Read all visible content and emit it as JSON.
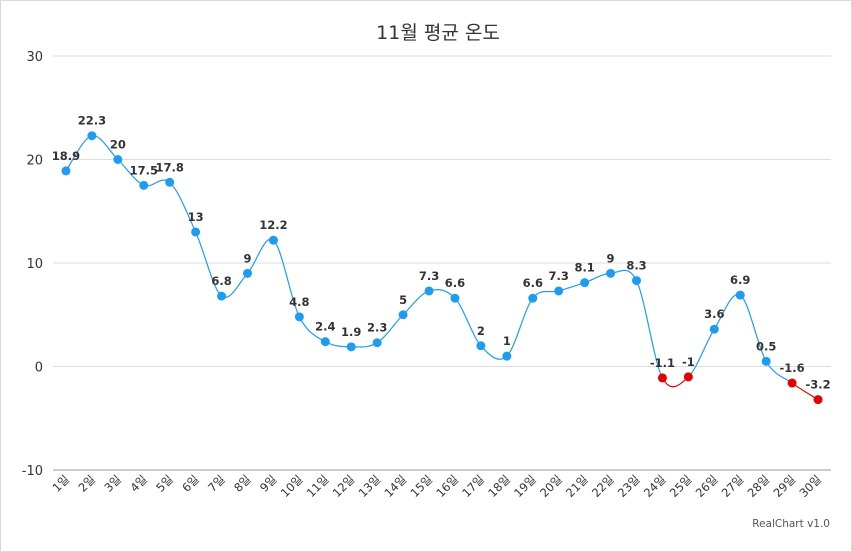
{
  "chart_data": {
    "type": "line",
    "title": "11월 평균 온도",
    "categories": [
      "1일",
      "2일",
      "3일",
      "4일",
      "5일",
      "6일",
      "7일",
      "8일",
      "9일",
      "10일",
      "11일",
      "12일",
      "13일",
      "14일",
      "15일",
      "16일",
      "17일",
      "18일",
      "19일",
      "20일",
      "21일",
      "22일",
      "23일",
      "24일",
      "25일",
      "26일",
      "27일",
      "28일",
      "29일",
      "30일"
    ],
    "values": [
      18.9,
      22.3,
      20,
      17.5,
      17.8,
      13,
      6.8,
      9,
      12.2,
      4.8,
      2.4,
      1.9,
      2.3,
      5,
      7.3,
      6.6,
      2,
      1,
      6.6,
      7.3,
      8.1,
      9,
      8.3,
      -1.1,
      -1,
      3.6,
      6.9,
      0.5,
      -1.6,
      -3.2
    ],
    "ylim": [
      -10,
      30
    ],
    "yticks": [
      "30",
      "20",
      "10",
      "0",
      "-10"
    ],
    "grid": true,
    "curve": "spline",
    "colors": {
      "positive": "#1f9cf0",
      "negative": "#e50000",
      "grid": "#dddddd"
    }
  },
  "credit": "RealChart v1.0"
}
